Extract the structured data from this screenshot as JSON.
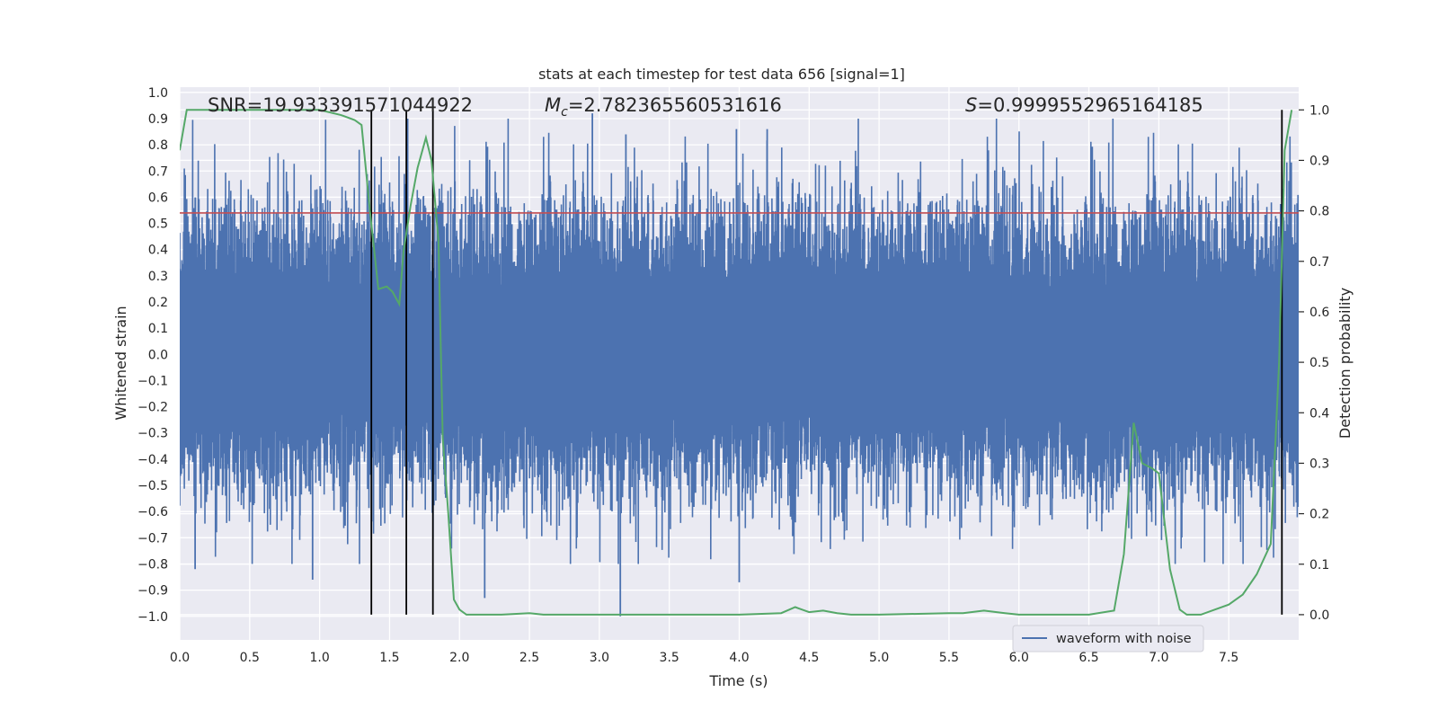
{
  "chart_data": {
    "type": "line",
    "title": "stats at each timestep for test data 656 [signal=1]",
    "xlabel": "Time (s)",
    "ylabel_left": "Whitened strain",
    "ylabel_right": "Detection probability",
    "xlim": [
      0.0,
      8.0
    ],
    "ylim_left": [
      -1.09,
      1.02
    ],
    "ylim_right": [
      -0.05,
      1.045
    ],
    "x_ticks": [
      "0.0",
      "0.5",
      "1.0",
      "1.5",
      "2.0",
      "2.5",
      "3.0",
      "3.5",
      "4.0",
      "4.5",
      "5.0",
      "5.5",
      "6.0",
      "6.5",
      "7.0",
      "7.5"
    ],
    "y_left_ticks": [
      "1.0",
      "0.9",
      "0.8",
      "0.7",
      "0.6",
      "0.5",
      "0.4",
      "0.3",
      "0.2",
      "0.1",
      "0.0",
      "−0.1",
      "−0.2",
      "−0.3",
      "−0.4",
      "−0.5",
      "−0.6",
      "−0.7",
      "−0.8",
      "−0.9",
      "−1.0"
    ],
    "y_right_ticks": [
      "1.0",
      "0.9",
      "0.8",
      "0.7",
      "0.6",
      "0.5",
      "0.4",
      "0.3",
      "0.2",
      "0.1",
      "0.0"
    ],
    "grid": true,
    "annotations": {
      "snr": "SNR=19.933391571044922",
      "mc_symbol": "M",
      "mc_sub": "c",
      "mc_value": "=2.782365560531616",
      "s_symbol": "S",
      "s_value": "=0.9999552965164185"
    },
    "legend": {
      "placement": "lower-right",
      "entry": "waveform with noise"
    },
    "series": [
      {
        "name": "waveform with noise",
        "axis": "left",
        "color": "#4c72b0",
        "kind": "noisy-waveform",
        "typical_upper": 0.5,
        "typical_lower": -0.45,
        "notable_peaks": [
          {
            "x": 0.11,
            "y": -0.82
          },
          {
            "x": 0.95,
            "y": -0.86
          },
          {
            "x": 2.18,
            "y": -0.93
          },
          {
            "x": 2.95,
            "y": 0.92
          },
          {
            "x": 3.15,
            "y": -1.0
          },
          {
            "x": 3.19,
            "y": 0.84
          },
          {
            "x": 3.98,
            "y": 0.86
          },
          {
            "x": 4.2,
            "y": 0.86
          },
          {
            "x": 4.0,
            "y": -0.87
          }
        ]
      },
      {
        "name": "detection probability",
        "axis": "right",
        "color": "#55a868",
        "x": [
          0.0,
          0.05,
          0.5,
          1.0,
          1.15,
          1.25,
          1.3,
          1.36,
          1.42,
          1.48,
          1.52,
          1.57,
          1.6,
          1.65,
          1.7,
          1.76,
          1.8,
          1.85,
          1.88,
          1.92,
          1.96,
          2.0,
          2.05,
          2.1,
          2.3,
          2.5,
          2.6,
          3.0,
          3.5,
          4.0,
          4.3,
          4.4,
          4.45,
          4.5,
          4.6,
          4.7,
          4.8,
          5.0,
          5.5,
          5.6,
          5.75,
          5.9,
          6.0,
          6.5,
          6.68,
          6.75,
          6.82,
          6.88,
          6.95,
          7.0,
          7.08,
          7.15,
          7.2,
          7.3,
          7.4,
          7.5,
          7.6,
          7.7,
          7.8,
          7.86,
          7.9,
          7.95
        ],
        "y": [
          0.92,
          1.0,
          1.0,
          1.0,
          0.99,
          0.98,
          0.97,
          0.8,
          0.645,
          0.65,
          0.64,
          0.615,
          0.72,
          0.81,
          0.885,
          0.945,
          0.9,
          0.74,
          0.35,
          0.2,
          0.03,
          0.01,
          0.0,
          0.0,
          0.0,
          0.003,
          0.0,
          0.0,
          0.0,
          0.0,
          0.003,
          0.015,
          0.01,
          0.005,
          0.008,
          0.003,
          0.0,
          0.0,
          0.003,
          0.003,
          0.008,
          0.003,
          0.0,
          0.0,
          0.008,
          0.12,
          0.38,
          0.3,
          0.29,
          0.28,
          0.09,
          0.01,
          0.0,
          0.0,
          0.01,
          0.02,
          0.04,
          0.08,
          0.14,
          0.5,
          0.92,
          1.0
        ]
      },
      {
        "name": "threshold",
        "axis": "left",
        "color": "#c44e52",
        "kind": "horizontal",
        "y": 0.54
      }
    ],
    "vertical_markers": {
      "color": "#000000",
      "x": [
        1.37,
        1.62,
        1.81,
        7.88
      ],
      "y_range_right": [
        0.0,
        1.0
      ]
    }
  }
}
